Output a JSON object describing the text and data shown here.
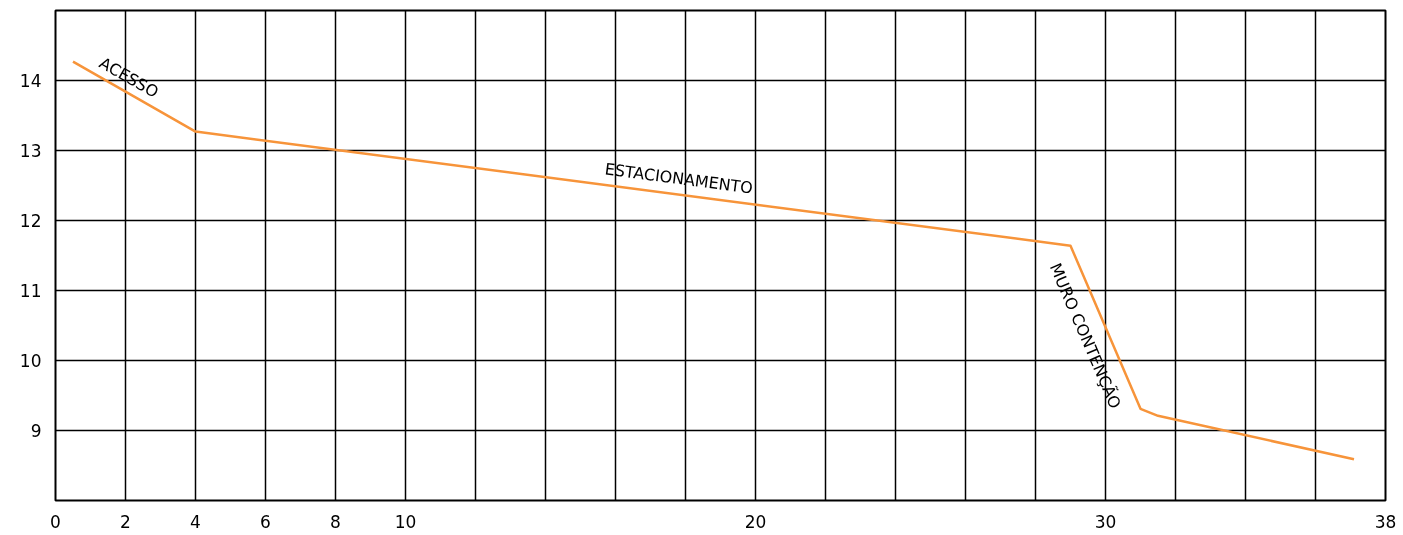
{
  "chart_data": {
    "type": "line",
    "x": [
      0.5,
      4,
      29,
      31,
      31.5,
      37.1
    ],
    "series": [
      {
        "color": "#f7943a",
        "values": [
          14.27,
          13.27,
          11.64,
          9.31,
          9.21,
          8.59
        ]
      }
    ],
    "xlim": [
      0,
      38
    ],
    "xticks": [
      0,
      2,
      4,
      6,
      8,
      10,
      {
        "value": 12,
        "label": null
      },
      {
        "value": 14,
        "label": null
      },
      {
        "value": 16,
        "label": null
      },
      {
        "value": 18,
        "label": null
      },
      20,
      {
        "value": 22,
        "label": null
      },
      {
        "value": 24,
        "label": null
      },
      {
        "value": 26,
        "label": null
      },
      {
        "value": 28,
        "label": null
      },
      30,
      {
        "value": 32,
        "label": null
      },
      {
        "value": 34,
        "label": null
      },
      {
        "value": 36,
        "label": null
      },
      38
    ],
    "ylim": [
      8,
      15
    ],
    "yticks": [
      9,
      10,
      11,
      12,
      13,
      14
    ],
    "grid": true,
    "annotations": [
      "ACESSO",
      "ESTACIONAMENTO",
      "MURO CONTENÇÃO"
    ]
  }
}
